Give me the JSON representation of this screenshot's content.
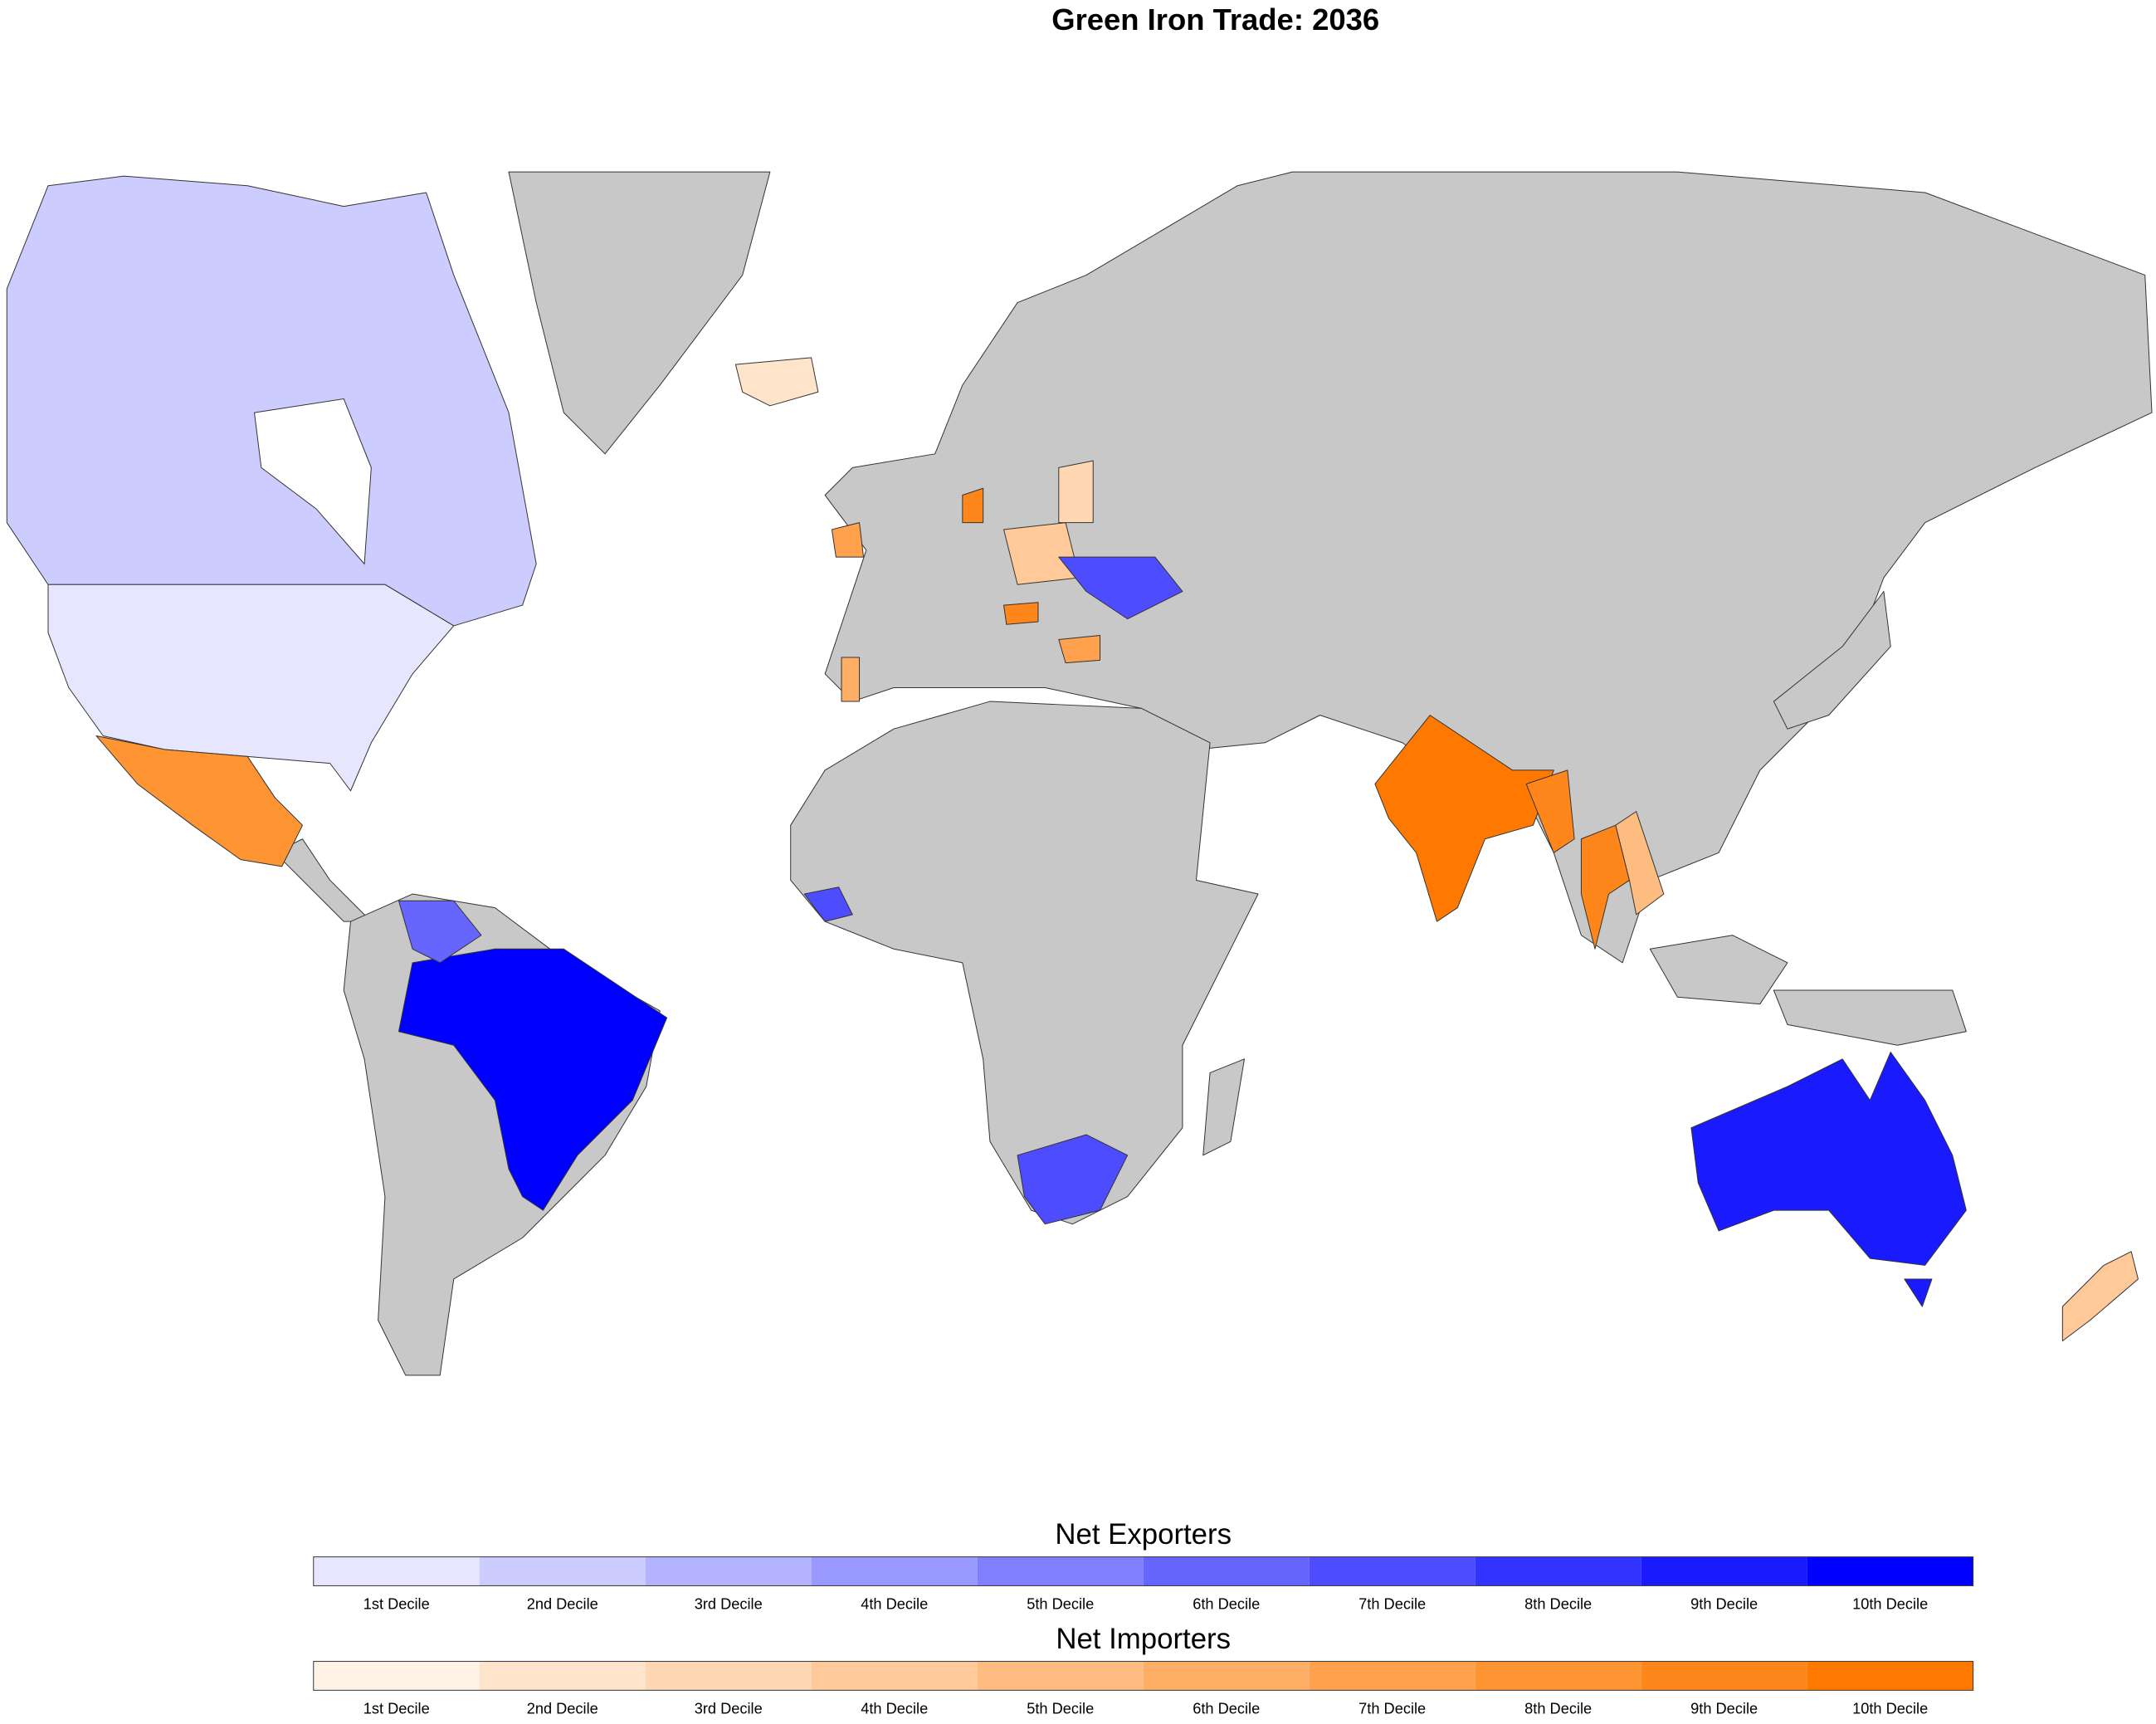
{
  "title": "Green Iron Trade: 2036",
  "legends": [
    {
      "title": "Net Exporters",
      "colors": [
        "#e6e6ff",
        "#ccccff",
        "#b3b3ff",
        "#9999ff",
        "#8080ff",
        "#6666ff",
        "#4d4dff",
        "#3333ff",
        "#1a1aff",
        "#0000ff"
      ],
      "labels": [
        "1st Decile",
        "2nd Decile",
        "3rd Decile",
        "4th Decile",
        "5th Decile",
        "6th Decile",
        "7th Decile",
        "8th Decile",
        "9th Decile",
        "10th Decile"
      ]
    },
    {
      "title": "Net Importers",
      "colors": [
        "#fff2e6",
        "#ffe4cc",
        "#ffd7b3",
        "#ffc999",
        "#ffbc80",
        "#ffae66",
        "#ffa14d",
        "#ff9433",
        "#ff861a",
        "#ff7900"
      ],
      "labels": [
        "1st Decile",
        "2nd Decile",
        "3rd Decile",
        "4th Decile",
        "5th Decile",
        "6th Decile",
        "7th Decile",
        "8th Decile",
        "9th Decile",
        "10th Decile"
      ]
    }
  ]
}
